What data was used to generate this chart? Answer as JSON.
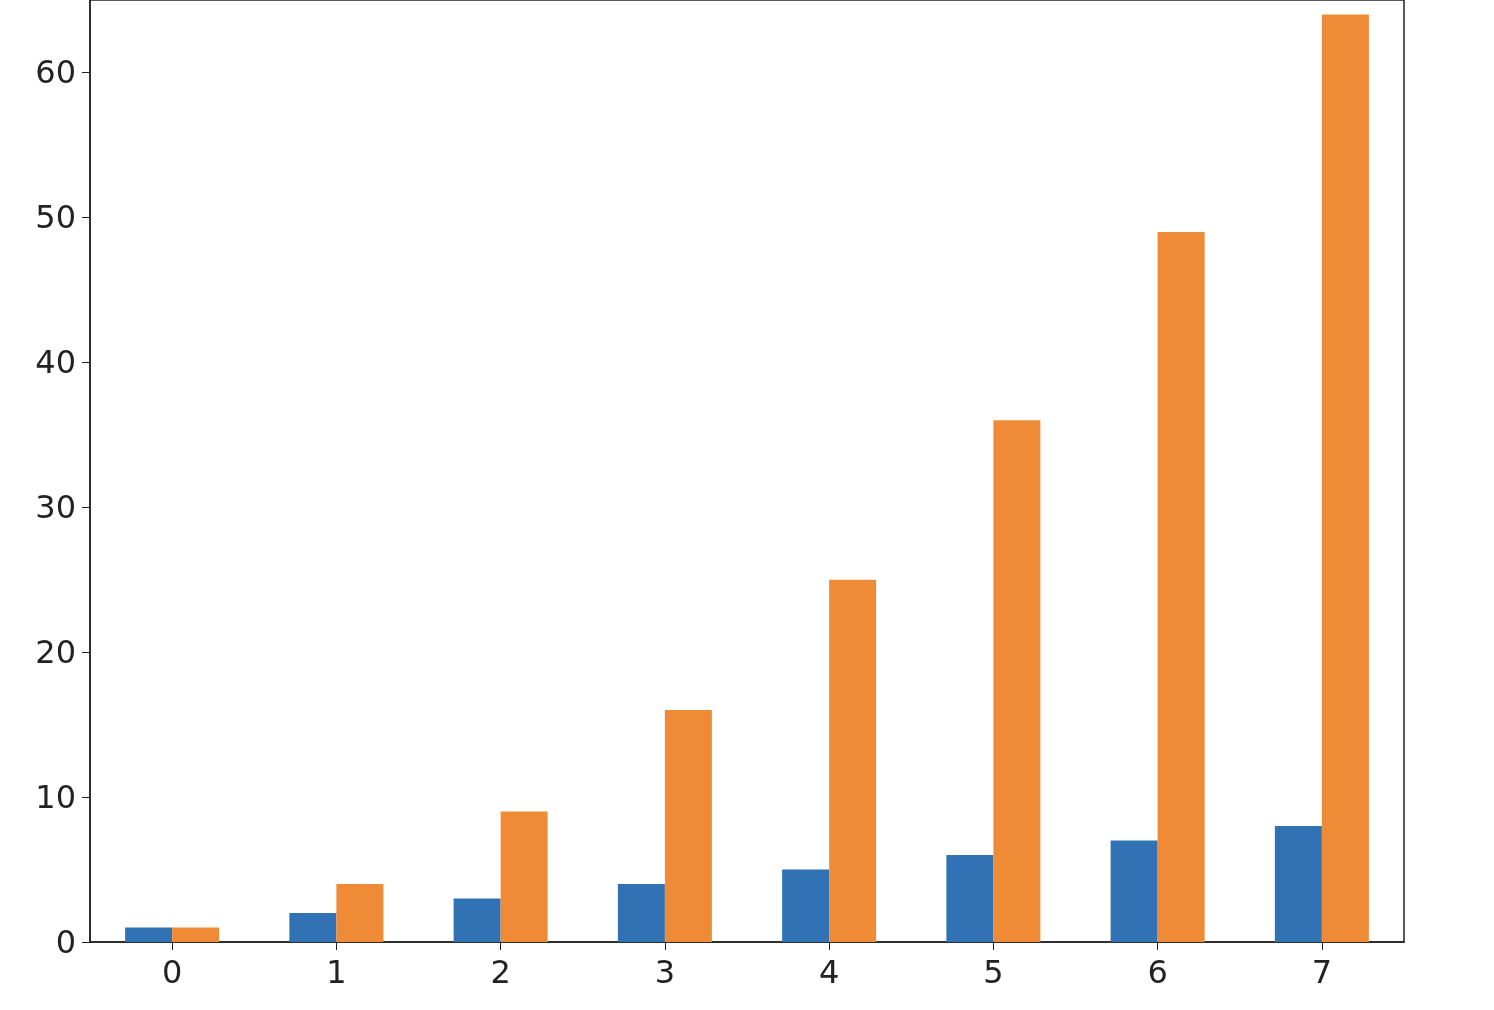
{
  "chart_data": {
    "type": "bar",
    "categories": [
      "0",
      "1",
      "2",
      "3",
      "4",
      "5",
      "6",
      "7"
    ],
    "series": [
      {
        "color": "#3072b3",
        "values": [
          1,
          2,
          3,
          4,
          5,
          6,
          7,
          8
        ]
      },
      {
        "color": "#ef8b36",
        "values": [
          1,
          4,
          9,
          16,
          25,
          36,
          49,
          64
        ]
      }
    ],
    "ylim": [
      0,
      65
    ],
    "yticks": [
      0,
      10,
      20,
      30,
      40,
      50,
      60
    ],
    "grid": false
  }
}
